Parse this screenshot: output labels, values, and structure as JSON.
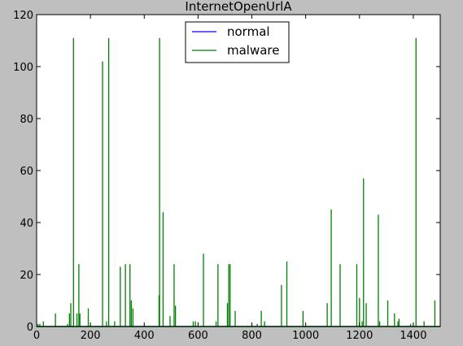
{
  "chart_data": {
    "type": "line",
    "title": "InternetOpenUrlA",
    "xlabel": "",
    "ylabel": "",
    "xlim": [
      0,
      1500
    ],
    "ylim": [
      0,
      120
    ],
    "xticks": [
      0,
      200,
      400,
      600,
      800,
      1000,
      1200,
      1400
    ],
    "yticks": [
      0,
      20,
      40,
      60,
      80,
      100,
      120
    ],
    "grid": false,
    "legend_position": "top-center",
    "series": [
      {
        "name": "normal",
        "color": "#0000ff",
        "spikes": []
      },
      {
        "name": "malware",
        "color": "#008000",
        "spikes": [
          [
            5,
            1
          ],
          [
            12,
            1
          ],
          [
            25,
            2
          ],
          [
            70,
            5
          ],
          [
            115,
            1
          ],
          [
            122,
            5
          ],
          [
            127,
            9
          ],
          [
            137,
            111
          ],
          [
            150,
            5
          ],
          [
            157,
            24
          ],
          [
            161,
            5
          ],
          [
            192,
            7
          ],
          [
            245,
            102
          ],
          [
            260,
            2
          ],
          [
            268,
            111
          ],
          [
            290,
            2
          ],
          [
            311,
            23
          ],
          [
            330,
            24
          ],
          [
            347,
            24
          ],
          [
            352,
            10
          ],
          [
            358,
            7
          ],
          [
            455,
            12
          ],
          [
            457,
            111
          ],
          [
            470,
            44
          ],
          [
            496,
            4
          ],
          [
            511,
            24
          ],
          [
            516,
            8
          ],
          [
            582,
            2
          ],
          [
            590,
            2
          ],
          [
            620,
            28
          ],
          [
            667,
            2
          ],
          [
            674,
            24
          ],
          [
            709,
            9
          ],
          [
            714,
            24
          ],
          [
            719,
            24
          ],
          [
            738,
            6
          ],
          [
            820,
            1
          ],
          [
            835,
            6
          ],
          [
            847,
            2
          ],
          [
            910,
            16
          ],
          [
            930,
            25
          ],
          [
            990,
            6
          ],
          [
            1080,
            9
          ],
          [
            1095,
            45
          ],
          [
            1128,
            24
          ],
          [
            1190,
            24
          ],
          [
            1200,
            11
          ],
          [
            1210,
            2
          ],
          [
            1215,
            57
          ],
          [
            1225,
            9
          ],
          [
            1270,
            43
          ],
          [
            1275,
            2
          ],
          [
            1305,
            10
          ],
          [
            1330,
            5
          ],
          [
            1343,
            2
          ],
          [
            1347,
            3
          ],
          [
            1390,
            1
          ],
          [
            1410,
            111
          ],
          [
            1440,
            2
          ],
          [
            1480,
            10
          ]
        ]
      }
    ]
  }
}
